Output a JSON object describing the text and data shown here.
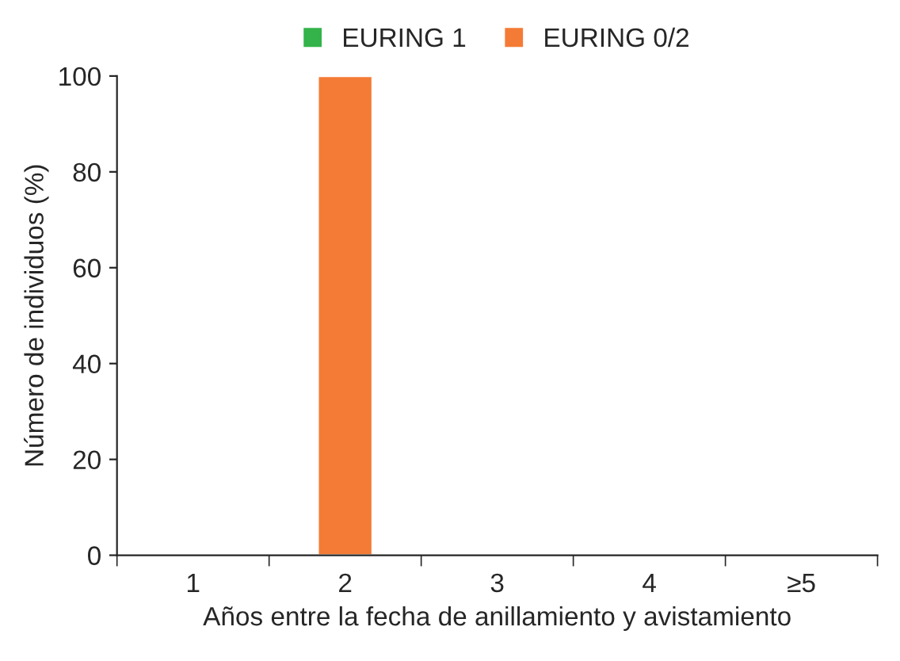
{
  "chart_data": {
    "type": "bar",
    "stacked": true,
    "xlabel": "Años entre la fecha de anillamiento y avistamiento",
    "ylabel": "Número de individuos (%)",
    "categories": [
      "1",
      "2",
      "3",
      "4",
      "≥5"
    ],
    "series": [
      {
        "name": "EURING 1",
        "color": "#33b34a",
        "values": [
          null,
          null,
          null,
          null,
          null
        ]
      },
      {
        "name": "EURING 0/2",
        "color": "#f47b35",
        "values": [
          null,
          100,
          null,
          null,
          null
        ]
      }
    ],
    "ylim": [
      0,
      100
    ],
    "yticks": [
      0,
      20,
      40,
      60,
      80,
      100
    ],
    "grid": false,
    "legend": "top"
  }
}
